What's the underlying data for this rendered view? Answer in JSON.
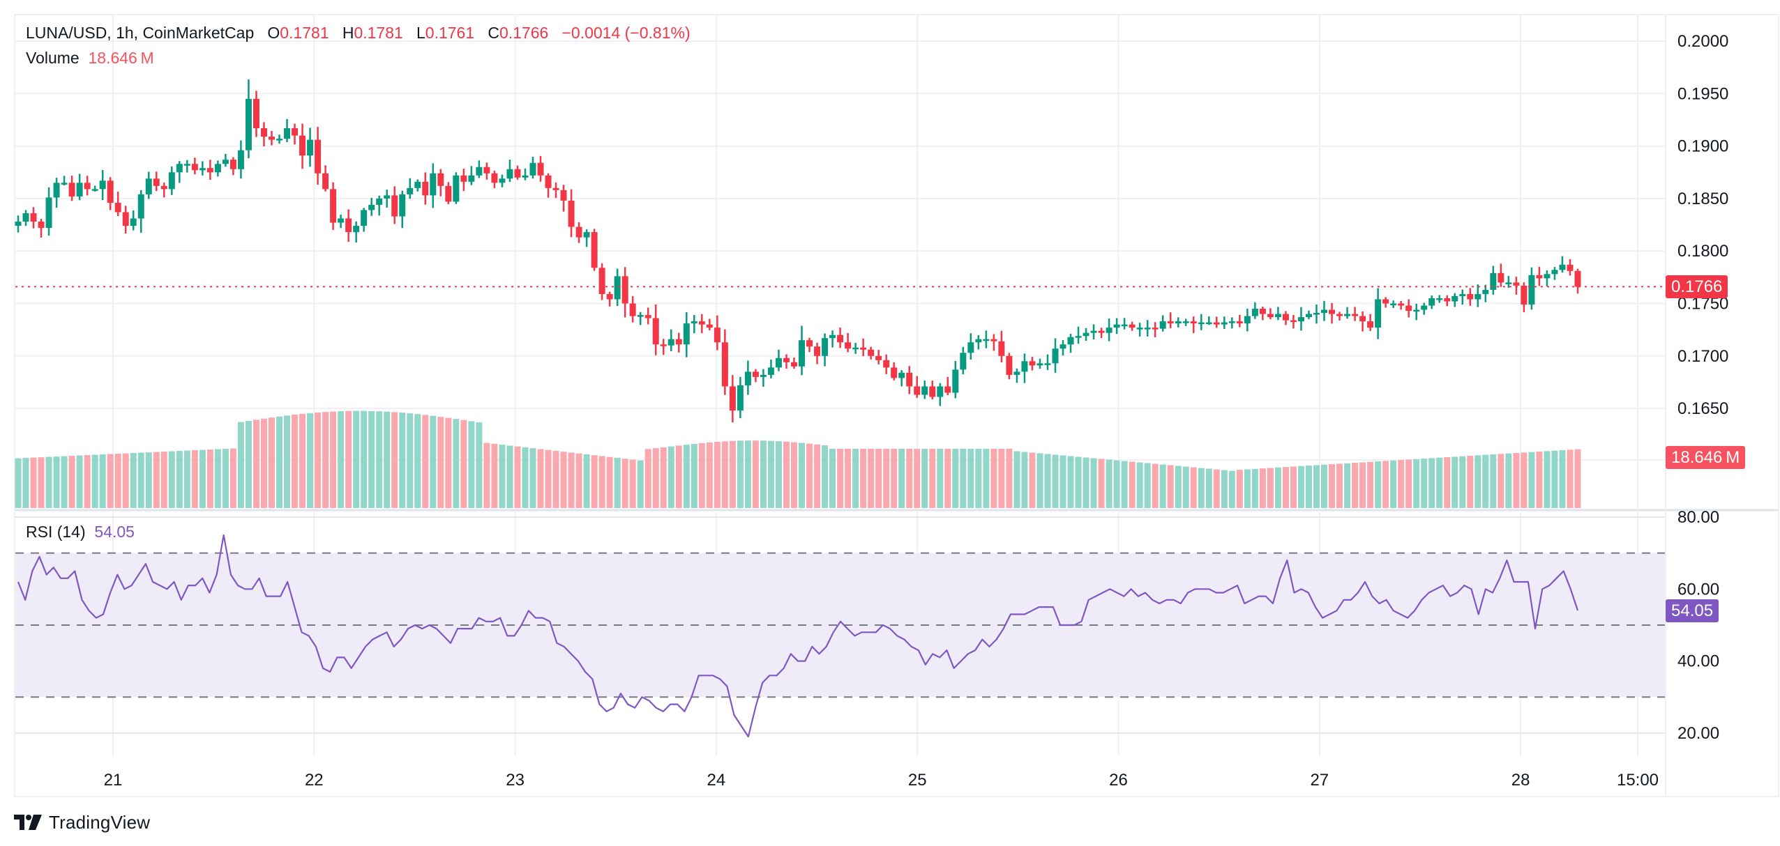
{
  "header": {
    "symbol": "LUNA/USD, 1h, CoinMarketCap",
    "open_label": "O",
    "open": "0.1781",
    "high_label": "H",
    "high": "0.1781",
    "low_label": "L",
    "low": "0.1761",
    "close_label": "C",
    "close": "0.1766",
    "change": "−0.0014 (−0.81%)",
    "volume_label": "Volume",
    "volume_value": "18.646 M"
  },
  "rsi_legend": {
    "label": "RSI (14)",
    "value": "54.05"
  },
  "price_tag": "0.1766",
  "volume_tag": "18.646 M",
  "rsi_tag": "54.05",
  "branding": {
    "logo_text": "TradingView",
    "logo_icon": "tradingview-logo-icon"
  },
  "colors": {
    "up": "#089981",
    "down": "#f23645",
    "vol_up": "#92d5c9",
    "vol_down": "#faa8ae",
    "rsi_line": "#7e57c2",
    "rsi_band": "#efebf8",
    "grid": "#f0f0f3",
    "price_line": "#f23645"
  },
  "chart_data": [
    {
      "type": "candlestick",
      "title": "LUNA/USD, 1h, CoinMarketCap",
      "interval": "1h",
      "price_axis": {
        "ticks": [
          "0.2000",
          "0.1950",
          "0.1900",
          "0.1850",
          "0.1800",
          "0.1750",
          "0.1700",
          "0.1650"
        ],
        "ylim": [
          0.1615,
          0.2025
        ]
      },
      "x_axis": {
        "ticks": [
          "21",
          "22",
          "23",
          "24",
          "25",
          "26",
          "27",
          "28",
          "15:00"
        ]
      },
      "first_bar_offset_hours_before_21": 12,
      "last_price": 0.1766,
      "closes": [
        0.1828,
        0.1836,
        0.1828,
        0.1822,
        0.1851,
        0.1865,
        0.1865,
        0.1852,
        0.1865,
        0.1859,
        0.1859,
        0.1867,
        0.1846,
        0.1837,
        0.1824,
        0.1831,
        0.1854,
        0.1869,
        0.1862,
        0.1859,
        0.1875,
        0.1883,
        0.1883,
        0.1877,
        0.1879,
        0.1875,
        0.1883,
        0.1887,
        0.1878,
        0.1896,
        0.1945,
        0.1917,
        0.1909,
        0.1906,
        0.1907,
        0.1917,
        0.191,
        0.1891,
        0.1906,
        0.1874,
        0.1859,
        0.1827,
        0.1831,
        0.1818,
        0.1824,
        0.1839,
        0.1844,
        0.185,
        0.1853,
        0.1833,
        0.1854,
        0.186,
        0.1866,
        0.1853,
        0.1874,
        0.1862,
        0.1847,
        0.1872,
        0.1866,
        0.1872,
        0.188,
        0.1874,
        0.1865,
        0.1869,
        0.1878,
        0.187,
        0.1872,
        0.1884,
        0.1872,
        0.186,
        0.1858,
        0.1848,
        0.1823,
        0.1813,
        0.1818,
        0.1784,
        0.1759,
        0.1754,
        0.1776,
        0.175,
        0.1738,
        0.1739,
        0.1736,
        0.1711,
        0.171,
        0.1716,
        0.1711,
        0.1731,
        0.1733,
        0.173,
        0.1727,
        0.1713,
        0.1671,
        0.1648,
        0.1672,
        0.1685,
        0.168,
        0.1682,
        0.1689,
        0.1698,
        0.1694,
        0.169,
        0.1715,
        0.1709,
        0.17,
        0.1717,
        0.172,
        0.1713,
        0.1707,
        0.1708,
        0.1706,
        0.17,
        0.1696,
        0.1689,
        0.1679,
        0.1684,
        0.1671,
        0.1663,
        0.1671,
        0.1661,
        0.1671,
        0.1665,
        0.1687,
        0.1703,
        0.1713,
        0.1716,
        0.1716,
        0.1714,
        0.17,
        0.1682,
        0.1685,
        0.1695,
        0.1691,
        0.1693,
        0.1693,
        0.1707,
        0.1711,
        0.1718,
        0.1719,
        0.1722,
        0.1724,
        0.1722,
        0.1727,
        0.173,
        0.173,
        0.1727,
        0.1727,
        0.1727,
        0.1726,
        0.1733,
        0.1731,
        0.1733,
        0.1733,
        0.1731,
        0.1732,
        0.1732,
        0.173,
        0.1732,
        0.1733,
        0.1731,
        0.1738,
        0.1745,
        0.174,
        0.1737,
        0.174,
        0.1734,
        0.1733,
        0.1737,
        0.174,
        0.1741,
        0.1744,
        0.174,
        0.1738,
        0.174,
        0.1738,
        0.1733,
        0.1727,
        0.1754,
        0.175,
        0.175,
        0.1748,
        0.1743,
        0.1744,
        0.1748,
        0.1755,
        0.1755,
        0.1752,
        0.1757,
        0.1759,
        0.1754,
        0.1759,
        0.1763,
        0.1779,
        0.177,
        0.177,
        0.1767,
        0.1749,
        0.1777,
        0.1774,
        0.1778,
        0.1782,
        0.1787,
        0.1781,
        0.1766
      ],
      "volume_axis_tag": "18.646 M",
      "volume_note": "Volume bars colored by candle direction; relative heights approximate"
    },
    {
      "type": "line",
      "title": "RSI (14)",
      "current": 54.05,
      "ylim": [
        15,
        85
      ],
      "ticks": [
        "80.00",
        "60.00",
        "40.00",
        "20.00"
      ],
      "bands": {
        "upper": 70,
        "middle": 50,
        "lower": 30
      },
      "values": [
        62,
        57,
        65,
        69,
        64,
        66,
        63,
        63,
        65,
        57,
        54,
        52,
        53,
        59,
        64,
        60,
        61,
        64,
        67,
        62,
        61,
        60,
        62,
        57,
        61,
        61,
        63,
        59,
        64,
        75,
        64,
        61,
        60,
        60,
        63,
        58,
        58,
        58,
        62,
        55,
        48,
        47,
        44,
        38,
        37,
        41,
        41,
        38,
        41,
        44,
        46,
        47,
        48,
        44,
        46,
        49,
        50,
        49,
        50,
        49,
        47,
        45,
        49,
        49,
        49,
        52,
        51,
        51,
        52,
        47,
        47,
        50,
        54,
        52,
        52,
        51,
        45,
        44,
        42,
        40,
        37,
        35,
        28,
        26,
        27,
        31,
        28,
        27,
        30,
        29,
        27,
        26,
        28,
        28,
        26,
        30,
        36,
        36,
        36,
        35,
        33,
        25,
        22,
        19,
        27,
        34,
        36,
        36,
        38,
        42,
        40,
        40,
        44,
        42,
        44,
        48,
        51,
        49,
        47,
        48,
        48,
        48,
        50,
        49,
        47,
        46,
        44,
        43,
        39,
        42,
        41,
        43,
        38,
        40,
        42,
        43,
        46,
        44,
        46,
        49,
        53,
        53,
        53,
        54,
        55,
        55,
        55,
        50,
        50,
        50,
        51,
        57,
        58,
        59,
        60,
        59,
        58,
        60,
        58,
        59,
        57,
        56,
        57,
        57,
        56,
        59,
        60,
        60,
        60,
        59,
        59,
        60,
        61,
        56,
        57,
        58,
        58,
        56,
        63,
        68,
        59,
        60,
        59,
        55,
        52,
        53,
        54,
        57,
        57,
        59,
        62,
        58,
        56,
        57,
        54,
        53,
        52,
        54,
        57,
        59,
        60,
        61,
        58,
        59,
        61,
        60,
        53,
        60,
        59,
        63,
        68,
        62,
        62,
        62,
        49,
        60,
        61,
        63,
        65,
        60,
        54.05
      ],
      "values_subset_note": "hourly bars; last value 54.05"
    }
  ]
}
